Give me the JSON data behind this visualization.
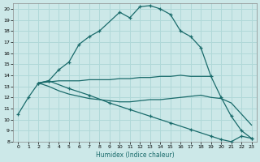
{
  "xlabel": "Humidex (Indice chaleur)",
  "bg_color": "#cce8e8",
  "grid_color": "#b0d8d8",
  "line_color": "#1a6b6b",
  "xlim": [
    -0.5,
    23.5
  ],
  "ylim": [
    8,
    20.5
  ],
  "yticks": [
    8,
    9,
    10,
    11,
    12,
    13,
    14,
    15,
    16,
    17,
    18,
    19,
    20
  ],
  "xticks": [
    0,
    1,
    2,
    3,
    4,
    5,
    6,
    7,
    8,
    9,
    10,
    11,
    12,
    13,
    14,
    15,
    16,
    17,
    18,
    19,
    20,
    21,
    22,
    23
  ],
  "curve1_x": [
    0,
    1,
    2,
    3,
    4,
    5,
    6,
    7,
    8,
    10,
    11,
    12,
    13,
    14,
    15,
    16,
    17,
    18,
    19,
    20,
    21,
    22,
    23
  ],
  "curve1_y": [
    10.5,
    12.0,
    13.3,
    13.5,
    14.5,
    15.2,
    16.8,
    17.5,
    18.0,
    19.7,
    19.2,
    20.2,
    20.3,
    20.0,
    19.5,
    18.0,
    17.5,
    16.5,
    13.9,
    12.0,
    10.3,
    9.0,
    8.3
  ],
  "curve2_x": [
    2,
    3,
    4,
    5,
    6,
    7,
    8,
    9,
    10,
    11,
    12,
    13,
    14,
    15,
    16,
    17,
    19
  ],
  "curve2_y": [
    13.3,
    13.4,
    13.5,
    13.5,
    13.5,
    13.6,
    13.6,
    13.6,
    13.7,
    13.7,
    13.8,
    13.8,
    13.9,
    13.9,
    14.0,
    13.9,
    13.9
  ],
  "curve3_x": [
    2,
    3,
    4,
    5,
    6,
    7,
    8,
    9,
    10,
    11,
    12,
    13,
    14,
    15,
    16,
    17,
    18,
    19,
    20,
    21,
    22,
    23
  ],
  "curve3_y": [
    13.3,
    13.0,
    12.6,
    12.3,
    12.1,
    11.9,
    11.8,
    11.7,
    11.6,
    11.6,
    11.7,
    11.8,
    11.8,
    11.9,
    12.0,
    12.1,
    12.2,
    12.0,
    11.9,
    11.5,
    10.5,
    9.5
  ],
  "curve4_x": [
    2,
    3,
    5,
    7,
    9,
    11,
    13,
    15,
    17,
    19,
    20,
    21,
    22,
    23
  ],
  "curve4_y": [
    13.3,
    13.5,
    12.8,
    12.2,
    11.5,
    10.9,
    10.3,
    9.7,
    9.1,
    8.5,
    8.2,
    8.0,
    8.5,
    8.3
  ]
}
